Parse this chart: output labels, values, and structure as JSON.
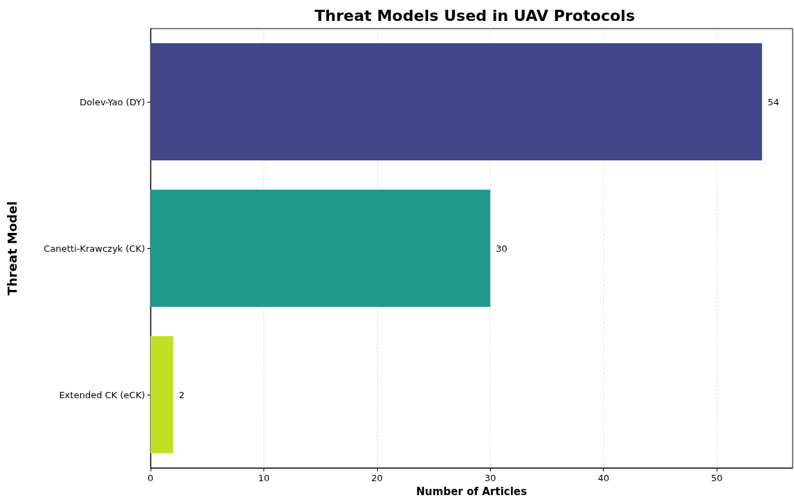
{
  "chart_data": {
    "type": "bar",
    "orientation": "horizontal",
    "title": "Threat Models Used in UAV Protocols",
    "xlabel": "Number of Articles",
    "ylabel": "Threat Model",
    "categories": [
      "Dolev-Yao (DY)",
      "Canetti-Krawczyk (CK)",
      "Extended CK (eCK)"
    ],
    "values": [
      54,
      30,
      2
    ],
    "colors": [
      "#404688",
      "#1f9a8a",
      "#c0df25"
    ],
    "xlim": [
      0,
      56.7
    ],
    "xticks": [
      0,
      10,
      20,
      30,
      40,
      50
    ],
    "grid": "x",
    "data_labels": true
  }
}
